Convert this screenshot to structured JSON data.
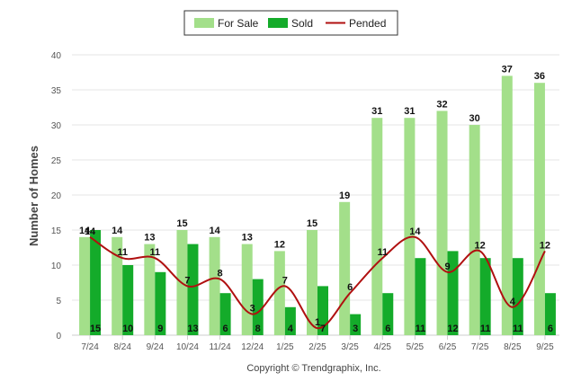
{
  "chart_data": {
    "type": "bar",
    "title": "",
    "xlabel": "",
    "ylabel": "Number of Homes",
    "ylim": [
      0,
      40
    ],
    "yticks": [
      0,
      5,
      10,
      15,
      20,
      25,
      30,
      35,
      40
    ],
    "grid": true,
    "legend_position": "top-center",
    "categories": [
      "7/24",
      "8/24",
      "9/24",
      "10/24",
      "11/24",
      "12/24",
      "1/25",
      "2/25",
      "3/25",
      "4/25",
      "5/25",
      "6/25",
      "7/25",
      "8/25",
      "9/25"
    ],
    "series": [
      {
        "name": "For Sale",
        "type": "bar",
        "color": "#a3df8a",
        "values": [
          14,
          14,
          13,
          15,
          14,
          13,
          12,
          15,
          19,
          31,
          31,
          32,
          30,
          37,
          36
        ]
      },
      {
        "name": "Sold",
        "type": "bar",
        "color": "#14ab2a",
        "values": [
          15,
          10,
          9,
          13,
          6,
          8,
          4,
          7,
          3,
          6,
          11,
          12,
          11,
          11,
          6
        ]
      },
      {
        "name": "Pended",
        "type": "line",
        "color": "#b01010",
        "values": [
          14,
          11,
          11,
          7,
          8,
          3,
          7,
          1,
          6,
          11,
          14,
          9,
          12,
          4,
          12
        ]
      }
    ],
    "credit": "Copyright © Trendgraphix, Inc."
  }
}
